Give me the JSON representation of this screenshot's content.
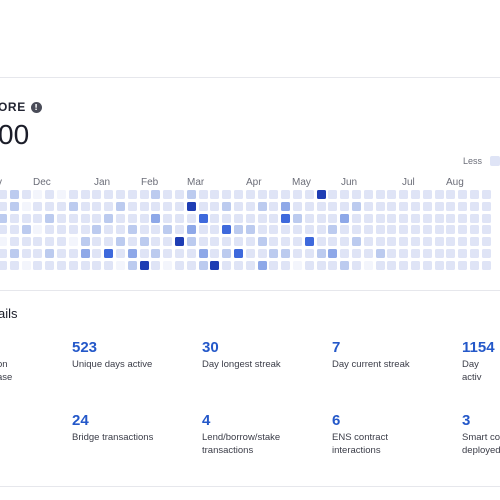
{
  "score_section": {
    "title": "ORE",
    "info_icon": "info-icon",
    "value": "00"
  },
  "legend": {
    "less_label": "Less"
  },
  "months": [
    "v",
    "Dec",
    "Jan",
    "Feb",
    "Mar",
    "Apr",
    "May",
    "Jun",
    "Jul",
    "Aug"
  ],
  "heatmap": {
    "levels": [
      "#f3f5fc",
      "#dfe4f6",
      "#bccbef",
      "#8ea8e8",
      "#3e69dc",
      "#1e3db4"
    ],
    "weeks": [
      [
        1,
        1,
        2,
        1,
        0,
        1,
        1
      ],
      [
        2,
        2,
        1,
        1,
        1,
        2,
        1
      ],
      [
        1,
        0,
        1,
        2,
        1,
        1,
        0
      ],
      [
        0,
        1,
        1,
        0,
        1,
        1,
        1
      ],
      [
        1,
        1,
        2,
        1,
        1,
        2,
        1
      ],
      [
        0,
        1,
        1,
        1,
        1,
        1,
        1
      ],
      [
        1,
        2,
        1,
        1,
        0,
        1,
        1
      ],
      [
        1,
        1,
        1,
        1,
        2,
        3,
        1
      ],
      [
        1,
        1,
        1,
        2,
        1,
        1,
        1
      ],
      [
        1,
        1,
        2,
        1,
        1,
        4,
        1
      ],
      [
        1,
        2,
        1,
        1,
        2,
        1,
        0
      ],
      [
        1,
        1,
        1,
        2,
        1,
        3,
        2
      ],
      [
        1,
        1,
        1,
        1,
        2,
        1,
        5
      ],
      [
        2,
        1,
        3,
        1,
        1,
        2,
        1
      ],
      [
        1,
        1,
        1,
        2,
        1,
        1,
        0
      ],
      [
        1,
        1,
        1,
        1,
        5,
        1,
        1
      ],
      [
        2,
        5,
        1,
        3,
        2,
        1,
        1
      ],
      [
        1,
        1,
        4,
        1,
        1,
        3,
        2
      ],
      [
        1,
        1,
        1,
        1,
        1,
        1,
        5
      ],
      [
        1,
        2,
        1,
        4,
        1,
        2,
        1
      ],
      [
        1,
        1,
        1,
        2,
        1,
        4,
        1
      ],
      [
        1,
        1,
        1,
        2,
        1,
        1,
        1
      ],
      [
        1,
        2,
        1,
        1,
        2,
        1,
        3
      ],
      [
        1,
        1,
        1,
        1,
        1,
        2,
        1
      ],
      [
        1,
        3,
        4,
        1,
        1,
        2,
        1
      ],
      [
        1,
        1,
        2,
        1,
        1,
        1,
        0
      ],
      [
        1,
        1,
        1,
        1,
        4,
        1,
        1
      ],
      [
        5,
        1,
        1,
        1,
        1,
        2,
        1
      ],
      [
        1,
        1,
        1,
        2,
        1,
        3,
        1
      ],
      [
        1,
        1,
        3,
        1,
        1,
        1,
        2
      ],
      [
        1,
        2,
        1,
        1,
        2,
        1,
        1
      ],
      [
        1,
        1,
        1,
        1,
        1,
        1,
        0
      ],
      [
        1,
        1,
        1,
        1,
        1,
        2,
        1
      ],
      [
        1,
        1,
        1,
        1,
        1,
        1,
        1
      ],
      [
        1,
        1,
        1,
        1,
        1,
        1,
        1
      ],
      [
        1,
        1,
        1,
        1,
        1,
        1,
        1
      ],
      [
        1,
        1,
        1,
        1,
        1,
        1,
        1
      ],
      [
        1,
        1,
        1,
        1,
        1,
        1,
        1
      ],
      [
        1,
        1,
        1,
        1,
        1,
        1,
        1
      ],
      [
        1,
        1,
        1,
        1,
        1,
        1,
        1
      ],
      [
        1,
        1,
        1,
        1,
        1,
        1,
        1
      ],
      [
        1,
        1,
        1,
        1,
        1,
        1,
        1
      ]
    ]
  },
  "details": {
    "title": "ails",
    "stats": [
      {
        "value": "",
        "label": "on\nase"
      },
      {
        "value": "523",
        "label": "Unique days active"
      },
      {
        "value": "30",
        "label": "Day longest streak"
      },
      {
        "value": "7",
        "label": "Day current streak"
      },
      {
        "value": "1154",
        "label": "Day activ"
      },
      {
        "value": "",
        "label": ""
      },
      {
        "value": "24",
        "label": "Bridge transactions"
      },
      {
        "value": "4",
        "label": "Lend/borrow/stake\ntransactions"
      },
      {
        "value": "6",
        "label": "ENS contract\ninteractions"
      },
      {
        "value": "3",
        "label": "Smart co\ndeployed"
      }
    ]
  }
}
